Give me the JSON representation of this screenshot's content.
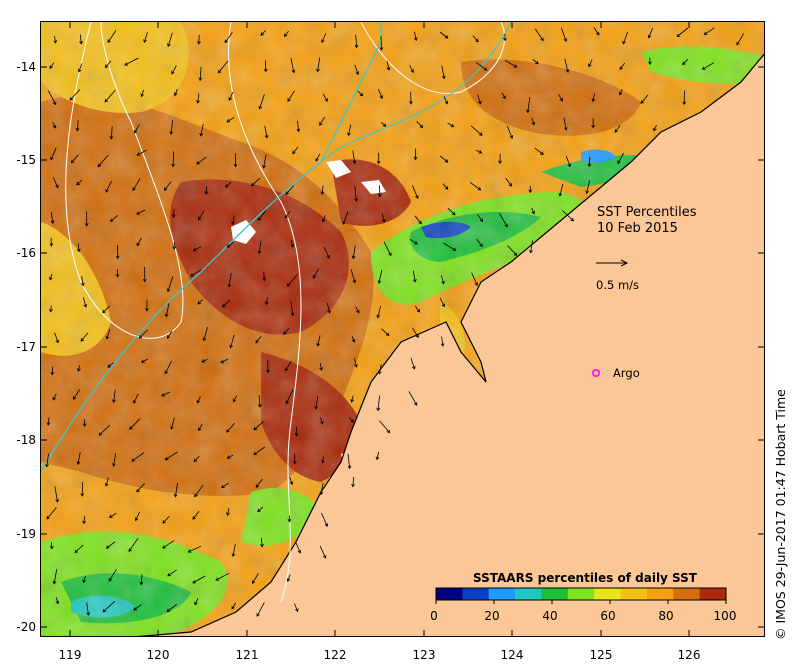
{
  "title": {
    "line1": "SST Percentiles",
    "line2": "10 Feb 2015"
  },
  "vector_scale_label": "0.5 m/s",
  "argo_label": "Argo",
  "credit": "© IMOS 29-Jun-2017 01:47 Hobart Time",
  "colorbar": {
    "title": "SSTAARS percentiles of daily SST",
    "ticks": [
      "0",
      "20",
      "40",
      "60",
      "80",
      "100"
    ],
    "colors": [
      "#000080",
      "#0a3fc4",
      "#1e9bff",
      "#1fc8c0",
      "#1fbf3c",
      "#7ee31c",
      "#e6e61a",
      "#f5c016",
      "#f5a010",
      "#d26e0c",
      "#aa2a0a"
    ]
  },
  "axes": {
    "lon_ticks": [
      "119",
      "120",
      "121",
      "122",
      "123",
      "124",
      "125",
      "126"
    ],
    "lat_ticks": [
      "-14",
      "-15",
      "-16",
      "-17",
      "-18",
      "-19",
      "-20"
    ]
  },
  "colors": {
    "land": "#fcc796",
    "argo_marker": "#ff00ff",
    "current_line": "#3cc8c8"
  }
}
